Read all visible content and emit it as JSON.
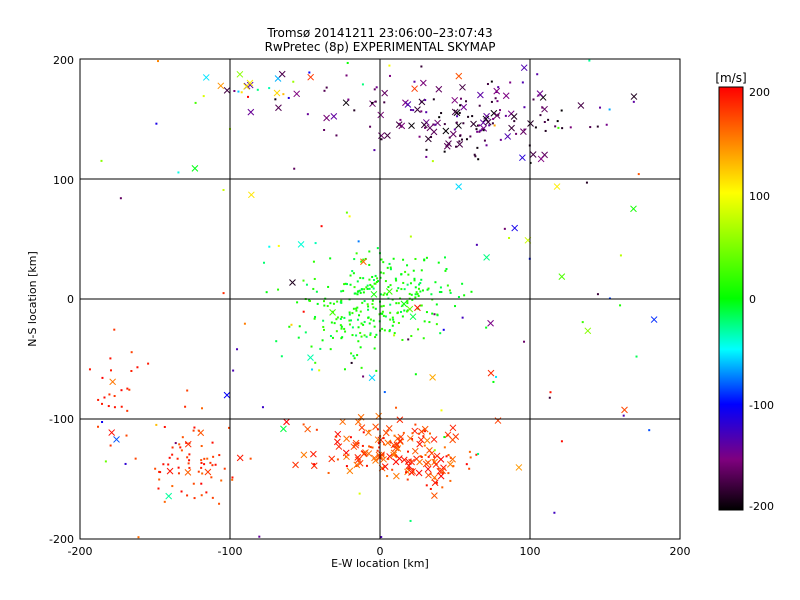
{
  "chart_data": {
    "type": "scatter",
    "title": "Tromsø 20141211 23:06:00–23:07:43",
    "subtitle": "RwPretec (8p) EXPERIMENTAL SKYMAP",
    "xlabel": "E-W location [km]",
    "ylabel": "N-S location [km]",
    "xlim": [
      -200,
      200
    ],
    "ylim": [
      -200,
      200
    ],
    "xticks": [
      "-200",
      "-100",
      "0",
      "100",
      "200"
    ],
    "yticks": [
      "200",
      "100",
      "0",
      "-100",
      "-200"
    ],
    "grid": true,
    "colorbar": {
      "label": "[m/s]",
      "range": [
        -200,
        200
      ],
      "ticks": [
        "200",
        "100",
        "0",
        "-100",
        "-200"
      ],
      "colors": [
        "#ff0000",
        "#ffff00",
        "#00ff00",
        "#00ffff",
        "#0000ff",
        "#7f007f",
        "#000000"
      ]
    },
    "marker_types": [
      "dot",
      "cross"
    ],
    "clusters": [
      {
        "x": 55,
        "y": 150,
        "sx": 40,
        "sy": 18,
        "n": 170,
        "vmin": -200,
        "vmax": -130,
        "cross_frac": 0.35
      },
      {
        "x": 0,
        "y": 5,
        "sx": 25,
        "sy": 18,
        "n": 230,
        "vmin": -20,
        "vmax": 25,
        "cross_frac": 0.02
      },
      {
        "x": -15,
        "y": -25,
        "sx": 20,
        "sy": 15,
        "n": 70,
        "vmin": -20,
        "vmax": 30,
        "cross_frac": 0.05
      },
      {
        "x": 5,
        "y": -125,
        "sx": 28,
        "sy": 12,
        "n": 150,
        "vmin": 150,
        "vmax": 200,
        "cross_frac": 0.5
      },
      {
        "x": 30,
        "y": -145,
        "sx": 12,
        "sy": 10,
        "n": 40,
        "vmin": 150,
        "vmax": 200,
        "cross_frac": 0.6
      },
      {
        "x": -125,
        "y": -135,
        "sx": 15,
        "sy": 20,
        "n": 70,
        "vmin": 160,
        "vmax": 200,
        "cross_frac": 0.08
      },
      {
        "x": -175,
        "y": -75,
        "sx": 10,
        "sy": 20,
        "n": 25,
        "vmin": 170,
        "vmax": 200,
        "cross_frac": 0.1
      },
      {
        "x": -80,
        "y": 175,
        "sx": 25,
        "sy": 12,
        "n": 30,
        "vmin": -200,
        "vmax": 200,
        "cross_frac": 0.4
      },
      {
        "x": 0,
        "y": 0,
        "sx": 110,
        "sy": 110,
        "n": 130,
        "vmin": -200,
        "vmax": 200,
        "cross_frac": 0.3
      }
    ]
  }
}
